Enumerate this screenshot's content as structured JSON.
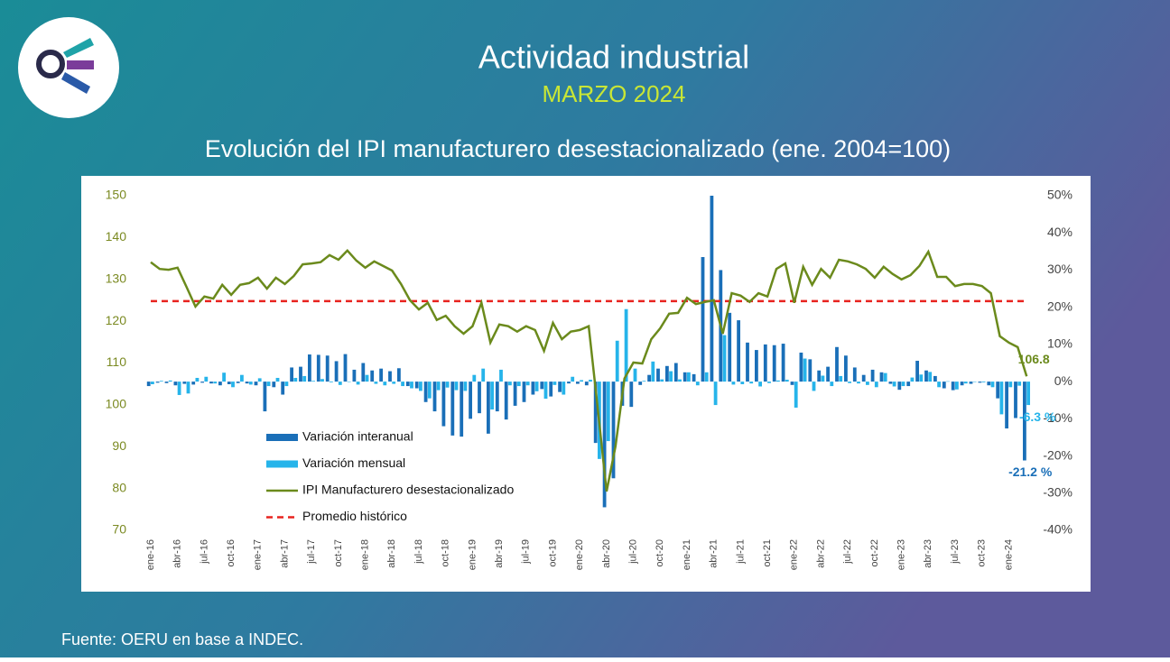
{
  "title": "Actividad industrial",
  "subtitle": "MARZO 2024",
  "source": "Fuente: OERU en base a INDEC.",
  "chart_data": {
    "type": "combo",
    "title": "Evolución del IPI manufacturero desestacionalizado (ene. 2004=100)",
    "categories": [
      "ene-16",
      null,
      null,
      "abr-16",
      null,
      null,
      "jul-16",
      null,
      null,
      "oct-16",
      null,
      null,
      "ene-17",
      null,
      null,
      "abr-17",
      null,
      null,
      "jul-17",
      null,
      null,
      "oct-17",
      null,
      null,
      "ene-18",
      null,
      null,
      "abr-18",
      null,
      null,
      "jul-18",
      null,
      null,
      "oct-18",
      null,
      null,
      "ene-19",
      null,
      null,
      "abr-19",
      null,
      null,
      "jul-19",
      null,
      null,
      "oct-19",
      null,
      null,
      "ene-20",
      null,
      null,
      "abr-20",
      null,
      null,
      "jul-20",
      null,
      null,
      "oct-20",
      null,
      null,
      "ene-21",
      null,
      null,
      "abr-21",
      null,
      null,
      "jul-21",
      null,
      null,
      "oct-21",
      null,
      null,
      "ene-22",
      null,
      null,
      "abr-22",
      null,
      null,
      "jul-22",
      null,
      null,
      "oct-22",
      null,
      null,
      "ene-23",
      null,
      null,
      "abr-23",
      null,
      null,
      "jul-23",
      null,
      null,
      "oct-23",
      null,
      null,
      "ene-24",
      null,
      null
    ],
    "series": [
      {
        "name": "Variación interanual",
        "kind": "bar",
        "axis": "y2",
        "color": "#1a6fb8",
        "values": [
          -1.2,
          -0.3,
          -0.4,
          -1.0,
          -0.6,
          -0.8,
          -0.3,
          -0.5,
          -1.0,
          -0.7,
          -0.4,
          -0.5,
          -1.0,
          -8.0,
          -1.5,
          -3.5,
          3.8,
          4.0,
          7.3,
          7.2,
          7.0,
          5.5,
          7.4,
          3.2,
          5.0,
          3.0,
          3.5,
          2.8,
          3.6,
          -1.2,
          -1.8,
          -5.5,
          -8.0,
          -12.0,
          -14.5,
          -14.8,
          -10.0,
          -8.5,
          -14.0,
          -8.0,
          -10.2,
          -6.5,
          -5.5,
          -3.5,
          -2.0,
          -4.0,
          -2.8,
          -0.5,
          -0.6,
          -1.0,
          -16.5,
          -33.8,
          -26.0,
          -6.5,
          -6.8,
          -0.9,
          1.8,
          3.5,
          4.2,
          5.0,
          2.5,
          2.0,
          33.5,
          50.0,
          30.0,
          18.5,
          16.5,
          10.5,
          8.5,
          10.0,
          9.8,
          10.2,
          -0.9,
          7.8,
          6.0,
          3.0,
          4.0,
          9.3,
          7.0,
          3.8,
          1.8,
          3.2,
          2.5,
          -0.6,
          -2.2,
          -1.2,
          5.6,
          3.0,
          1.5,
          -1.8,
          -2.3,
          -1.0,
          -0.6,
          -0.3,
          -1.0,
          -4.5,
          -12.6,
          -9.8,
          -21.2
        ],
        "value_labels": [
          null,
          null,
          null,
          null,
          null,
          null,
          null,
          null,
          null,
          null,
          null,
          null,
          null,
          null,
          null,
          null,
          null,
          null,
          null,
          null,
          null,
          null,
          null,
          null,
          null,
          null,
          null,
          null,
          null,
          null,
          null,
          null,
          null,
          null,
          null,
          null,
          null,
          null,
          null,
          null,
          null,
          null,
          null,
          null,
          null,
          null,
          null,
          null,
          null,
          null,
          null,
          null,
          null,
          null,
          null,
          null,
          null,
          null,
          null,
          null,
          null,
          null,
          null,
          null,
          null,
          null,
          null,
          null,
          null,
          null,
          null,
          null,
          null,
          null,
          null,
          null,
          null,
          null,
          null,
          null,
          null,
          null,
          null,
          null,
          null,
          null,
          null,
          null,
          null,
          null,
          null,
          null,
          null,
          null,
          null,
          null,
          null,
          null,
          "-21.2 %"
        ]
      },
      {
        "name": "Variación mensual",
        "kind": "bar",
        "axis": "y2",
        "color": "#26b4ea",
        "values": [
          -0.7,
          0.2,
          0.3,
          -3.6,
          -3.2,
          1.0,
          1.3,
          -0.5,
          2.4,
          -1.5,
          1.8,
          -0.8,
          0.9,
          -1.2,
          1.0,
          -1.2,
          1.0,
          1.5,
          0.2,
          0.7,
          -0.2,
          -0.9,
          -0.1,
          -0.8,
          1.8,
          -0.6,
          -1.0,
          -0.6,
          -1.2,
          -1.8,
          -2.5,
          -4.5,
          -2.3,
          -1.6,
          -2.3,
          -2.5,
          1.8,
          3.5,
          -7.5,
          3.2,
          -1.0,
          -1.2,
          -1.0,
          -2.6,
          -4.6,
          -0.9,
          -3.5,
          1.3,
          0.4,
          0.5,
          -20.8,
          -16.0,
          11.0,
          19.5,
          3.5,
          0.2,
          5.4,
          0.6,
          2.8,
          0.6,
          2.5,
          -1.0,
          2.5,
          -6.3,
          12.5,
          -0.8,
          -0.7,
          -0.5,
          -1.3,
          -0.4,
          0.3,
          0.5,
          -7.0,
          6.2,
          -2.5,
          1.6,
          -1.2,
          1.5,
          -0.4,
          -0.5,
          -0.9,
          -1.5,
          2.3,
          -1.3,
          -1.2,
          1.1,
          1.9,
          2.6,
          -1.5,
          0.1,
          -2.1,
          -0.5,
          -0.1,
          -0.2,
          -1.5,
          -8.8,
          -1.5,
          -1.1,
          -6.3
        ],
        "value_labels": [
          null,
          null,
          null,
          null,
          null,
          null,
          null,
          null,
          null,
          null,
          null,
          null,
          null,
          null,
          null,
          null,
          null,
          null,
          null,
          null,
          null,
          null,
          null,
          null,
          null,
          null,
          null,
          null,
          null,
          null,
          null,
          null,
          null,
          null,
          null,
          null,
          null,
          null,
          null,
          null,
          null,
          null,
          null,
          null,
          null,
          null,
          null,
          null,
          null,
          null,
          null,
          null,
          null,
          null,
          null,
          null,
          null,
          null,
          null,
          null,
          null,
          null,
          null,
          null,
          null,
          null,
          null,
          null,
          null,
          null,
          null,
          null,
          null,
          null,
          null,
          null,
          null,
          null,
          null,
          null,
          null,
          null,
          null,
          null,
          null,
          null,
          null,
          null,
          null,
          null,
          null,
          null,
          null,
          null,
          null,
          null,
          null,
          null,
          "-6.3 %"
        ]
      },
      {
        "name": "IPI Manufacturero desestacionalizado",
        "kind": "line",
        "axis": "y",
        "color": "#6b8a1c",
        "values": [
          134.1,
          132.5,
          132.3,
          132.8,
          128.2,
          123.5,
          125.9,
          125.4,
          128.7,
          126.3,
          128.7,
          129.1,
          130.4,
          127.8,
          130.4,
          128.9,
          130.8,
          133.6,
          133.8,
          134.1,
          135.8,
          134.7,
          136.9,
          134.5,
          132.8,
          134.3,
          133.2,
          132.1,
          128.9,
          125.0,
          122.8,
          124.4,
          120.3,
          121.3,
          118.8,
          117.0,
          118.8,
          124.4,
          114.9,
          119.2,
          118.8,
          117.5,
          118.8,
          117.9,
          112.9,
          119.6,
          115.7,
          117.5,
          117.9,
          118.8,
          99.4,
          79.3,
          90.1,
          106.3,
          110.1,
          109.9,
          115.7,
          118.3,
          121.8,
          122.0,
          125.6,
          124.1,
          124.6,
          125.0,
          117.0,
          126.7,
          126.1,
          124.6,
          126.7,
          125.9,
          132.5,
          133.8,
          124.4,
          133.0,
          128.7,
          132.5,
          130.4,
          134.7,
          134.3,
          133.6,
          132.5,
          130.4,
          133.0,
          131.3,
          130.0,
          131.0,
          133.2,
          136.6,
          130.6,
          130.6,
          128.4,
          128.9,
          128.9,
          128.4,
          126.7,
          116.4,
          114.9,
          113.8,
          106.8
        ],
        "value_labels": [
          null,
          null,
          null,
          null,
          null,
          null,
          null,
          null,
          null,
          null,
          null,
          null,
          null,
          null,
          null,
          null,
          null,
          null,
          null,
          null,
          null,
          null,
          null,
          null,
          null,
          null,
          null,
          null,
          null,
          null,
          null,
          null,
          null,
          null,
          null,
          null,
          null,
          null,
          null,
          null,
          null,
          null,
          null,
          null,
          null,
          null,
          null,
          null,
          null,
          null,
          null,
          null,
          null,
          null,
          null,
          null,
          null,
          null,
          null,
          null,
          null,
          null,
          null,
          null,
          null,
          null,
          null,
          null,
          null,
          null,
          null,
          null,
          null,
          null,
          null,
          null,
          null,
          null,
          null,
          null,
          null,
          null,
          null,
          null,
          null,
          null,
          null,
          null,
          null,
          null,
          null,
          null,
          null,
          null,
          null,
          null,
          null,
          null,
          "106.8"
        ]
      }
    ],
    "average": {
      "name": "Promedio histórico",
      "value": 124.8,
      "color": "#e8231f"
    },
    "ylim": [
      70,
      150
    ],
    "yticks": [
      70,
      80,
      90,
      100,
      110,
      120,
      130,
      140,
      150
    ],
    "y2lim": [
      -40,
      50
    ],
    "y2ticks": [
      {
        "value": -40,
        "label": "-40%"
      },
      {
        "value": -30,
        "label": "-30%"
      },
      {
        "value": -20,
        "label": "-20%"
      },
      {
        "value": -10,
        "label": "-10%"
      },
      {
        "value": 0,
        "label": "0%"
      },
      {
        "value": 10,
        "label": "10%"
      },
      {
        "value": 20,
        "label": "20%"
      },
      {
        "value": 30,
        "label": "30%"
      },
      {
        "value": 40,
        "label": "40%"
      },
      {
        "value": 50,
        "label": "50%"
      }
    ],
    "legend": "lower left",
    "grid": false
  }
}
